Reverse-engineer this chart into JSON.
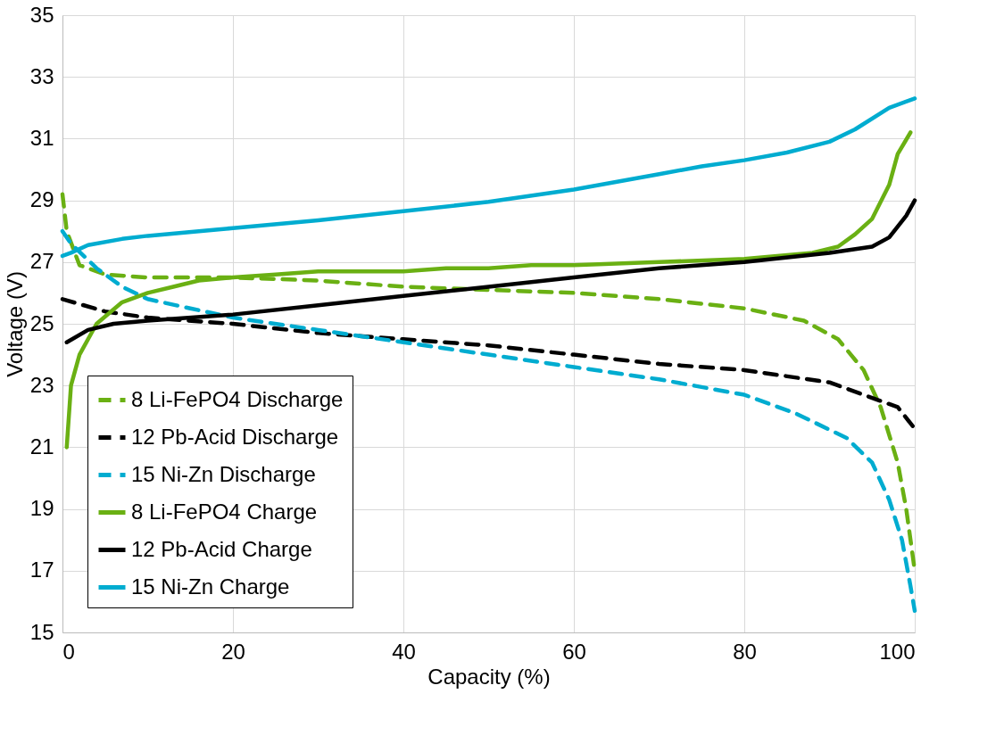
{
  "chart_data": {
    "type": "line",
    "xlabel": "Capacity (%)",
    "ylabel": "Voltage (V)",
    "xlim": [
      0,
      100
    ],
    "xticks": [
      0,
      20,
      40,
      60,
      80,
      100
    ],
    "ylim": [
      15,
      35
    ],
    "yticks": [
      15,
      17,
      19,
      21,
      23,
      25,
      27,
      29,
      31,
      33,
      35
    ],
    "grid": true,
    "legend": "bottom left",
    "marker": "none",
    "series": [
      {
        "name": "8 Li-FePO4 Discharge",
        "color": "#6ab013",
        "line_style": "dashed",
        "x": [
          0,
          0.5,
          2,
          5,
          10,
          20,
          30,
          40,
          50,
          60,
          70,
          80,
          87,
          91,
          94,
          96,
          98,
          99,
          100
        ],
        "values": [
          29.2,
          28,
          26.9,
          26.6,
          26.5,
          26.5,
          26.4,
          26.2,
          26.1,
          26.0,
          25.8,
          25.5,
          25.1,
          24.5,
          23.5,
          22.3,
          20.5,
          19,
          17
        ]
      },
      {
        "name": "12 Pb-Acid Discharge",
        "color": "#000000",
        "line_style": "dashed",
        "x": [
          0,
          5,
          10,
          20,
          30,
          40,
          50,
          60,
          70,
          80,
          90,
          95,
          98,
          100
        ],
        "values": [
          25.8,
          25.4,
          25.2,
          25.0,
          24.7,
          24.5,
          24.3,
          24.0,
          23.7,
          23.5,
          23.1,
          22.6,
          22.3,
          21.6
        ]
      },
      {
        "name": "15 Ni-Zn Discharge",
        "color": "#00acd0",
        "line_style": "dashed",
        "x": [
          0,
          1,
          4,
          7,
          10,
          15,
          20,
          30,
          40,
          50,
          60,
          70,
          80,
          86,
          92,
          95,
          97,
          98.5,
          99.5,
          100
        ],
        "values": [
          28.0,
          27.6,
          26.8,
          26.2,
          25.8,
          25.5,
          25.2,
          24.8,
          24.4,
          24.0,
          23.6,
          23.2,
          22.7,
          22.1,
          21.3,
          20.5,
          19.3,
          18,
          16.5,
          15.7
        ]
      },
      {
        "name": "8 Li-FePO4 Charge",
        "color": "#6ab013",
        "line_style": "solid",
        "x": [
          0.5,
          1,
          2,
          4,
          7,
          10,
          13,
          16,
          20,
          25,
          30,
          40,
          45,
          50,
          55,
          60,
          70,
          80,
          88,
          91,
          93,
          95,
          97,
          98,
          99.5
        ],
        "values": [
          21,
          23,
          24,
          25,
          25.7,
          26.0,
          26.2,
          26.4,
          26.5,
          26.6,
          26.7,
          26.7,
          26.8,
          26.8,
          26.9,
          26.9,
          27.0,
          27.1,
          27.3,
          27.5,
          27.9,
          28.4,
          29.5,
          30.5,
          31.2
        ]
      },
      {
        "name": "12 Pb-Acid Charge",
        "color": "#000000",
        "line_style": "solid",
        "x": [
          0.5,
          3,
          6,
          10,
          20,
          30,
          40,
          50,
          60,
          70,
          80,
          90,
          95,
          97,
          99,
          100
        ],
        "values": [
          24.4,
          24.8,
          25.0,
          25.1,
          25.3,
          25.6,
          25.9,
          26.2,
          26.5,
          26.8,
          27.0,
          27.3,
          27.5,
          27.8,
          28.5,
          29.0
        ]
      },
      {
        "name": "15 Ni-Zn Charge",
        "color": "#00acd0",
        "line_style": "solid",
        "x": [
          0,
          1,
          3,
          7,
          10,
          20,
          30,
          40,
          50,
          60,
          70,
          75,
          80,
          85,
          90,
          93,
          97,
          100
        ],
        "values": [
          27.2,
          27.3,
          27.55,
          27.75,
          27.85,
          28.1,
          28.35,
          28.65,
          28.95,
          29.35,
          29.85,
          30.1,
          30.3,
          30.55,
          30.9,
          31.3,
          32.0,
          32.3
        ]
      }
    ]
  }
}
